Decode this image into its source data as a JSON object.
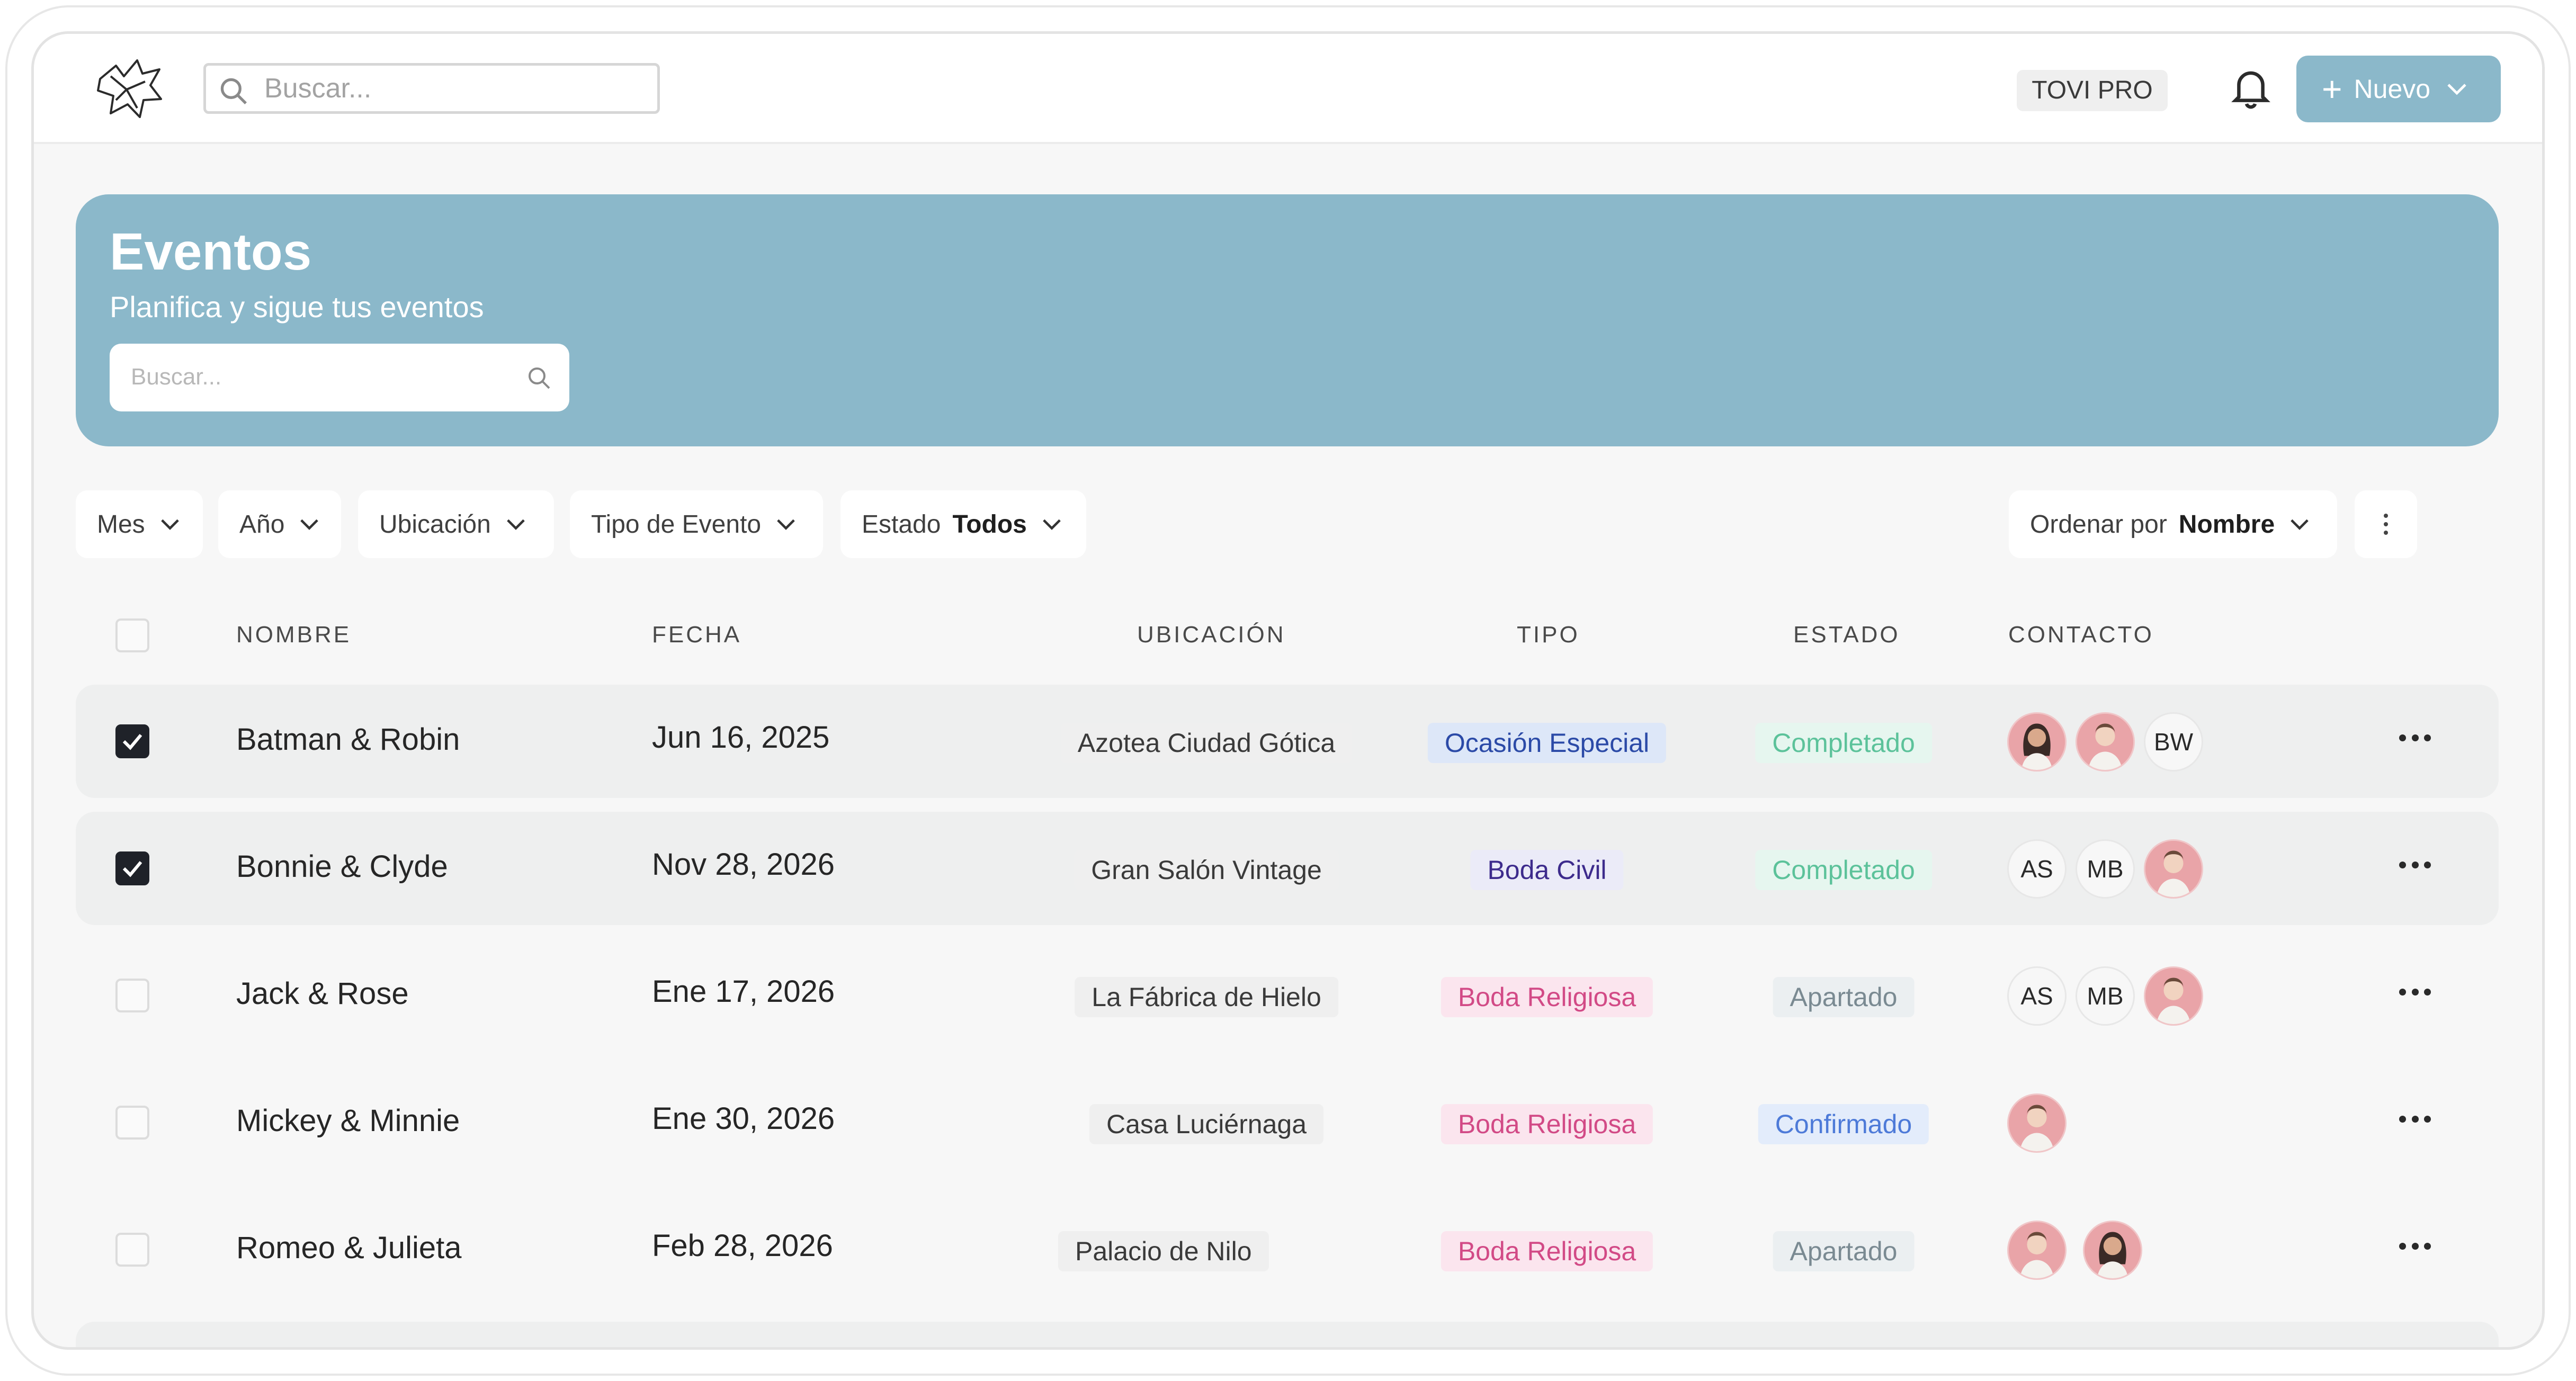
{
  "topbar": {
    "search_placeholder": "Buscar...",
    "plan_badge": "TOVI PRO",
    "new_button": "Nuevo",
    "accent_color": "#8bb8ca"
  },
  "hero": {
    "title": "Eventos",
    "subtitle": "Planifica y sigue tus eventos",
    "search_placeholder": "Buscar..."
  },
  "filters": {
    "month": "Mes",
    "year": "Año",
    "location": "Ubicación",
    "event_type": "Tipo de Evento",
    "status_label": "Estado",
    "status_value": "Todos",
    "sort_label": "Ordenar por",
    "sort_value": "Nombre"
  },
  "table": {
    "columns": [
      "NOMBRE",
      "FECHA",
      "UBICACIÓN",
      "TIPO",
      "ESTADO",
      "CONTACTO"
    ],
    "rows": [
      {
        "name": "Batman & Robin",
        "date": "Jun 16, 2025",
        "location": "Azotea Ciudad Gótica",
        "type": "Ocasión Especial",
        "status": "Completado",
        "checked": true,
        "contacts": [
          {
            "kind": "photo",
            "icon": "woman-avatar-icon"
          },
          {
            "kind": "photo",
            "icon": "man-avatar-icon"
          },
          {
            "kind": "initials",
            "text": "BW"
          }
        ]
      },
      {
        "name": "Bonnie & Clyde",
        "date": "Nov 28, 2026",
        "location": "Gran Salón Vintage",
        "type": "Boda Civil",
        "status": "Completado",
        "checked": true,
        "contacts": [
          {
            "kind": "initials",
            "text": "AS"
          },
          {
            "kind": "initials",
            "text": "MB"
          },
          {
            "kind": "photo",
            "icon": "man-avatar-icon"
          }
        ]
      },
      {
        "name": "Jack & Rose",
        "date": "Ene 17, 2026",
        "location": "La Fábrica de Hielo",
        "type": "Boda Religiosa",
        "status": "Apartado",
        "checked": false,
        "contacts": [
          {
            "kind": "initials",
            "text": "AS"
          },
          {
            "kind": "initials",
            "text": "MB"
          },
          {
            "kind": "photo",
            "icon": "man-avatar-icon"
          }
        ]
      },
      {
        "name": "Mickey & Minnie",
        "date": "Ene 30, 2026",
        "location": "Casa Luciérnaga",
        "type": "Boda Religiosa",
        "status": "Confirmado",
        "checked": false,
        "contacts": [
          {
            "kind": "photo",
            "icon": "man-avatar-icon"
          }
        ]
      },
      {
        "name": "Romeo & Julieta",
        "date": "Feb 28, 2026",
        "location": "Palacio de Nilo",
        "type": "Boda Religiosa",
        "status": "Apartado",
        "checked": false,
        "contacts": [
          {
            "kind": "photo",
            "icon": "man-avatar-icon"
          },
          {
            "kind": "photo",
            "icon": "woman-avatar-icon"
          }
        ]
      }
    ]
  }
}
